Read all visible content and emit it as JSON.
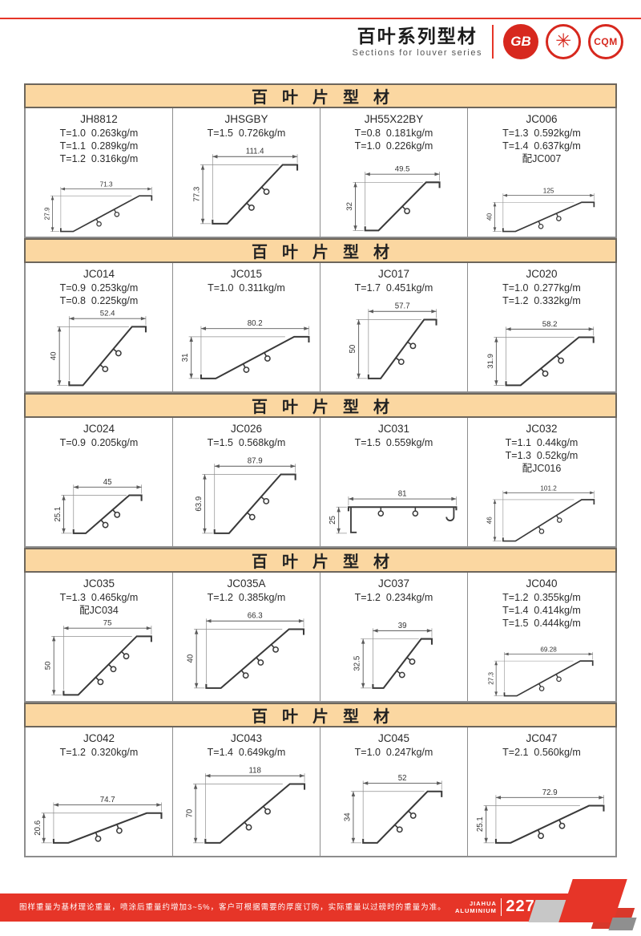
{
  "colors": {
    "accent_red": "#e63528",
    "banner_tan": "#fbd7a1"
  },
  "header": {
    "title_cn": "百叶系列型材",
    "subtitle_en": "Sections for louver series",
    "logos": [
      "GB",
      "✳",
      "CQM"
    ]
  },
  "footer": {
    "note": "图样重量为基材理论重量，喷涂后重量约增加3~5%，客户可根据需要的厚度订购，实际重量以过磅时的重量为准。",
    "brand_line1": "JIAHUA",
    "brand_line2": "ALUMINIUM",
    "page_number": "227"
  },
  "sections": [
    {
      "title": "百叶片型材",
      "cells": [
        {
          "model": "JH8812",
          "specs": [
            "T=1.0  0.263kg/m",
            "T=1.1  0.289kg/m",
            "T=1.2  0.316kg/m"
          ],
          "w": "71.3",
          "h": "27.9",
          "shape": "slope",
          "hooks": 2
        },
        {
          "model": "JHSGBY",
          "specs": [
            "T=1.5  0.726kg/m"
          ],
          "w": "111.4",
          "h": "77.3",
          "shape": "slope",
          "hooks": 2
        },
        {
          "model": "JH55X22BY",
          "specs": [
            "T=0.8  0.181kg/m",
            "T=1.0  0.226kg/m"
          ],
          "w": "49.5",
          "h": "32",
          "shape": "slope",
          "hooks": 1
        },
        {
          "model": "JC006",
          "specs": [
            "T=1.3  0.592kg/m",
            "T=1.4  0.637kg/m",
            "配JC007"
          ],
          "w": "125",
          "h": "40",
          "shape": "slope",
          "hooks": 2
        }
      ]
    },
    {
      "title": "百叶片型材",
      "cells": [
        {
          "model": "JC014",
          "specs": [
            "T=0.9  0.253kg/m",
            "T=0.8  0.225kg/m"
          ],
          "w": "52.4",
          "h": "40",
          "shape": "slope",
          "hooks": 2
        },
        {
          "model": "JC015",
          "specs": [
            "T=1.0  0.311kg/m"
          ],
          "w": "80.2",
          "h": "31",
          "shape": "slope",
          "hooks": 2
        },
        {
          "model": "JC017",
          "specs": [
            "T=1.7  0.451kg/m"
          ],
          "w": "57.7",
          "h": "50",
          "shape": "slope",
          "hooks": 2
        },
        {
          "model": "JC020",
          "specs": [
            "T=1.0  0.277kg/m",
            "T=1.2  0.332kg/m"
          ],
          "w": "58.2",
          "h": "31.9",
          "shape": "slope",
          "hooks": 2
        }
      ]
    },
    {
      "title": "百叶片型材",
      "cells": [
        {
          "model": "JC024",
          "specs": [
            "T=0.9  0.205kg/m"
          ],
          "w": "45",
          "h": "25.1",
          "shape": "slope",
          "hooks": 2
        },
        {
          "model": "JC026",
          "specs": [
            "T=1.5  0.568kg/m"
          ],
          "w": "87.9",
          "h": "63.9",
          "shape": "slope",
          "hooks": 2
        },
        {
          "model": "JC031",
          "specs": [
            "T=1.5  0.559kg/m"
          ],
          "w": "81",
          "h": "25",
          "shape": "flat",
          "hooks": 2
        },
        {
          "model": "JC032",
          "specs": [
            "T=1.1  0.44kg/m",
            "T=1.3  0.52kg/m",
            "配JC016"
          ],
          "w": "101.2",
          "h": "46",
          "shape": "slope",
          "hooks": 2
        }
      ]
    },
    {
      "title": "百叶片型材",
      "cells": [
        {
          "model": "JC035",
          "specs": [
            "T=1.3  0.465kg/m",
            "配JC034"
          ],
          "w": "75",
          "h": "50",
          "shape": "slope",
          "hooks": 3
        },
        {
          "model": "JC035A",
          "specs": [
            "T=1.2  0.385kg/m"
          ],
          "w": "66.3",
          "h": "40",
          "shape": "slope",
          "hooks": 3
        },
        {
          "model": "JC037",
          "specs": [
            "T=1.2  0.234kg/m"
          ],
          "w": "39",
          "h": "32.5",
          "shape": "slope",
          "hooks": 2
        },
        {
          "model": "JC040",
          "specs": [
            "T=1.2  0.355kg/m",
            "T=1.4  0.414kg/m",
            "T=1.5  0.444kg/m"
          ],
          "w": "69.28",
          "h": "27.3",
          "shape": "slope",
          "hooks": 2
        }
      ]
    },
    {
      "title": "百叶片型材",
      "cells": [
        {
          "model": "JC042",
          "specs": [
            "T=1.2  0.320kg/m"
          ],
          "w": "74.7",
          "h": "20.6",
          "shape": "slope",
          "hooks": 2
        },
        {
          "model": "JC043",
          "specs": [
            "T=1.4  0.649kg/m"
          ],
          "w": "118",
          "h": "70",
          "shape": "slope",
          "hooks": 2
        },
        {
          "model": "JC045",
          "specs": [
            "T=1.0  0.247kg/m"
          ],
          "w": "52",
          "h": "34",
          "shape": "slope",
          "hooks": 2
        },
        {
          "model": "JC047",
          "specs": [
            "T=2.1  0.560kg/m"
          ],
          "w": "72.9",
          "h": "25.1",
          "shape": "slope",
          "hooks": 2
        }
      ]
    }
  ]
}
